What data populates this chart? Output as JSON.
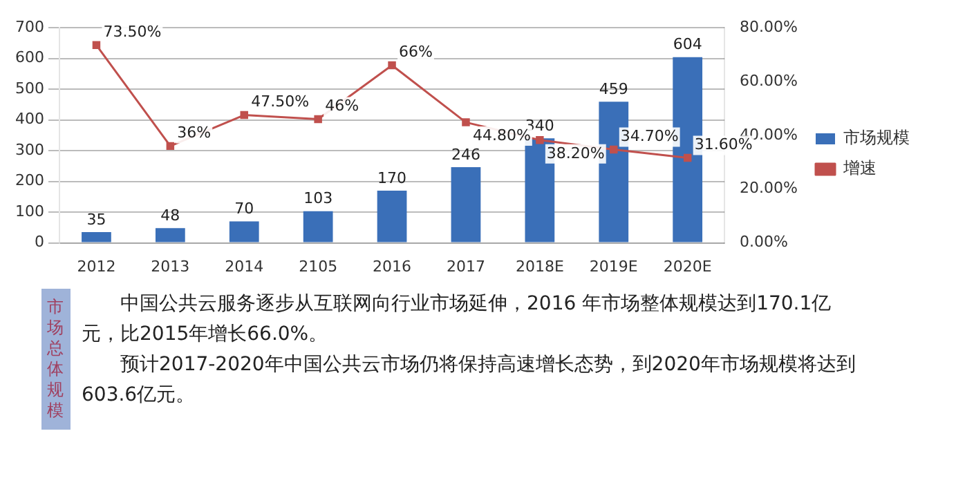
{
  "chart_data": {
    "type": "bar",
    "categories": [
      "2012",
      "2013",
      "2014",
      "2105",
      "2016",
      "2017",
      "2018E",
      "2019E",
      "2020E"
    ],
    "series": [
      {
        "name": "市场规模",
        "color": "#3a6fb8",
        "values": [
          35,
          48,
          70,
          103,
          170,
          246,
          340,
          459,
          604
        ],
        "value_labels": [
          "35",
          "48",
          "70",
          "103",
          "170",
          "246",
          "340",
          "459",
          "604"
        ]
      },
      {
        "name": "增速",
        "type": "line",
        "axis": "y2",
        "color": "#c0504d",
        "values": [
          73.5,
          36,
          47.5,
          46,
          66,
          44.8,
          38.2,
          34.7,
          31.6
        ],
        "value_labels": [
          "73.50%",
          "36%",
          "47.50%",
          "46%",
          "66%",
          "44.80%",
          "38.20%",
          "34.70%",
          "31.60%"
        ]
      }
    ],
    "ylim": [
      0,
      700
    ],
    "yticks": [
      0,
      100,
      200,
      300,
      400,
      500,
      600,
      700
    ],
    "y2lim": [
      0,
      80
    ],
    "y2ticks": [
      {
        "value": 0,
        "label": "0.00%"
      },
      {
        "value": 20,
        "label": "20.00%"
      },
      {
        "value": 40,
        "label": "40.00%"
      },
      {
        "value": 60,
        "label": "60.00%"
      },
      {
        "value": 80,
        "label": "80.00%"
      }
    ],
    "grid": "y",
    "legend": "right",
    "marker": "square",
    "line_style": "solid",
    "annotations": [
      "市场总体规模",
      "中国公共云服务逐步从互联网向行业市场延伸，2016 年市场整体规模达到170.1亿元，比2015年增长66.0%。",
      "预计2017-2020年中国公共云市场仍将保持高速增长态势，到2020年市场规模将达到603.6亿元。"
    ]
  }
}
